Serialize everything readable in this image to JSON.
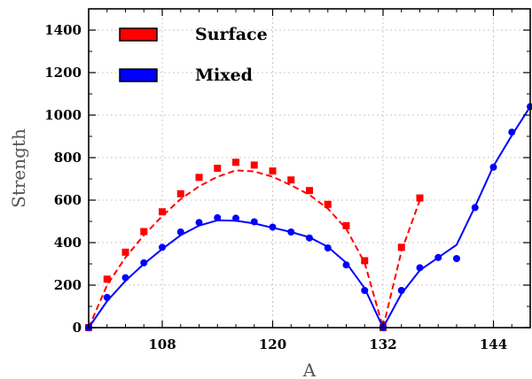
{
  "chart_data": {
    "type": "line",
    "title": "",
    "xlabel": "A",
    "ylabel": "Strength",
    "xlim": [
      100,
      148
    ],
    "ylim": [
      0,
      1500
    ],
    "xticks": [
      108,
      120,
      132,
      144
    ],
    "yticks": [
      0,
      200,
      400,
      600,
      800,
      1000,
      1200,
      1400
    ],
    "legend_position": "top-left",
    "series": [
      {
        "name": "Surface",
        "color": "#ff0000",
        "line_style": "dashed",
        "marker": "square",
        "points": [
          [
            100,
            0
          ],
          [
            102,
            228
          ],
          [
            104,
            355
          ],
          [
            106,
            452
          ],
          [
            108,
            545
          ],
          [
            110,
            630
          ],
          [
            112,
            707
          ],
          [
            114,
            750
          ],
          [
            116,
            778
          ],
          [
            118,
            765
          ],
          [
            120,
            737
          ],
          [
            122,
            695
          ],
          [
            124,
            645
          ],
          [
            126,
            580
          ],
          [
            128,
            480
          ],
          [
            130,
            315
          ],
          [
            132,
            0
          ],
          [
            134,
            378
          ],
          [
            136,
            610
          ]
        ],
        "line": [
          [
            100,
            0
          ],
          [
            102,
            200
          ],
          [
            104,
            330
          ],
          [
            106,
            435
          ],
          [
            108,
            525
          ],
          [
            110,
            605
          ],
          [
            112,
            665
          ],
          [
            114,
            710
          ],
          [
            116,
            740
          ],
          [
            118,
            735
          ],
          [
            120,
            710
          ],
          [
            122,
            670
          ],
          [
            124,
            625
          ],
          [
            126,
            560
          ],
          [
            128,
            465
          ],
          [
            130,
            305
          ],
          [
            132,
            0
          ],
          [
            134,
            360
          ],
          [
            136,
            600
          ]
        ]
      },
      {
        "name": "Mixed",
        "color": "#0000ff",
        "line_style": "solid",
        "marker": "circle",
        "points": [
          [
            100,
            0
          ],
          [
            102,
            142
          ],
          [
            104,
            235
          ],
          [
            106,
            305
          ],
          [
            108,
            378
          ],
          [
            110,
            450
          ],
          [
            112,
            495
          ],
          [
            114,
            517
          ],
          [
            116,
            515
          ],
          [
            118,
            498
          ],
          [
            120,
            473
          ],
          [
            122,
            450
          ],
          [
            124,
            422
          ],
          [
            126,
            375
          ],
          [
            128,
            295
          ],
          [
            130,
            175
          ],
          [
            132,
            0
          ],
          [
            134,
            175
          ],
          [
            136,
            282
          ],
          [
            138,
            330
          ],
          [
            140,
            325
          ],
          [
            142,
            565
          ],
          [
            144,
            755
          ],
          [
            146,
            920
          ],
          [
            148,
            1040
          ]
        ],
        "line": [
          [
            100,
            0
          ],
          [
            102,
            125
          ],
          [
            104,
            220
          ],
          [
            106,
            300
          ],
          [
            108,
            370
          ],
          [
            110,
            435
          ],
          [
            112,
            480
          ],
          [
            114,
            505
          ],
          [
            116,
            503
          ],
          [
            118,
            490
          ],
          [
            120,
            470
          ],
          [
            122,
            450
          ],
          [
            124,
            425
          ],
          [
            126,
            380
          ],
          [
            128,
            305
          ],
          [
            130,
            185
          ],
          [
            132,
            0
          ],
          [
            134,
            160
          ],
          [
            136,
            270
          ],
          [
            138,
            330
          ],
          [
            140,
            390
          ],
          [
            142,
            570
          ],
          [
            144,
            760
          ],
          [
            146,
            905
          ],
          [
            148,
            1040
          ]
        ]
      }
    ]
  }
}
